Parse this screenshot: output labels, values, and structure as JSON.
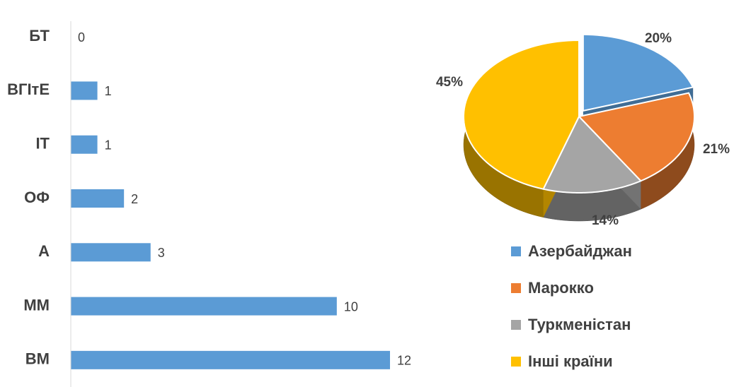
{
  "chart_data": [
    {
      "type": "bar",
      "orientation": "horizontal",
      "categories": [
        "БТ",
        "ВГІтЕ",
        "ІТ",
        "ОФ",
        "А",
        "ММ",
        "ВМ"
      ],
      "values": [
        0,
        1,
        1,
        2,
        3,
        10,
        12
      ],
      "color": "#5b9bd5"
    },
    {
      "type": "pie",
      "3d": true,
      "categories": [
        "Азербайджан",
        "Марокко",
        "Туркменістан",
        "Інші країни"
      ],
      "values": [
        20,
        21,
        14,
        45
      ],
      "value_labels": [
        "20%",
        "21%",
        "14%",
        "45%"
      ],
      "colors": [
        "#5b9bd5",
        "#ed7d31",
        "#a5a5a5",
        "#ffc000"
      ],
      "legend": "bottom-right"
    }
  ]
}
